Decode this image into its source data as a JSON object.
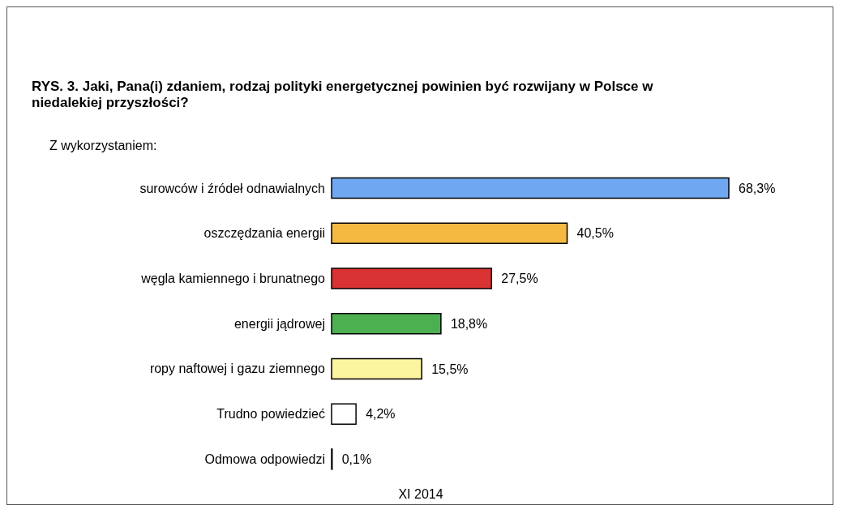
{
  "chart_data": {
    "type": "bar",
    "orientation": "horizontal",
    "title": "RYS. 3. Jaki, Pana(i) zdaniem, rodzaj polityki energetycznej powinien być rozwijany w Polsce w niedalekiej przyszłości?",
    "subtitle": "Z wykorzystaniem:",
    "categories": [
      "surowców i źródeł odnawialnych",
      "oszczędzania energii",
      "węgla kamiennego i brunatnego",
      "energii jądrowej",
      "ropy naftowej i gazu ziemnego",
      "Trudno powiedzieć",
      "Odmowa odpowiedzi"
    ],
    "values": [
      68.3,
      40.5,
      27.5,
      18.8,
      15.5,
      4.2,
      0.1
    ],
    "value_labels": [
      "68,3%",
      "40,5%",
      "27,5%",
      "18,8%",
      "15,5%",
      "4,2%",
      "0,1%"
    ],
    "colors": [
      "#6fa8f0",
      "#f5b942",
      "#d93232",
      "#4caf50",
      "#fbf5a0",
      "#ffffff",
      "#ffffff"
    ],
    "annotations": [
      "XI 2014"
    ],
    "grid": false,
    "legend": false
  }
}
